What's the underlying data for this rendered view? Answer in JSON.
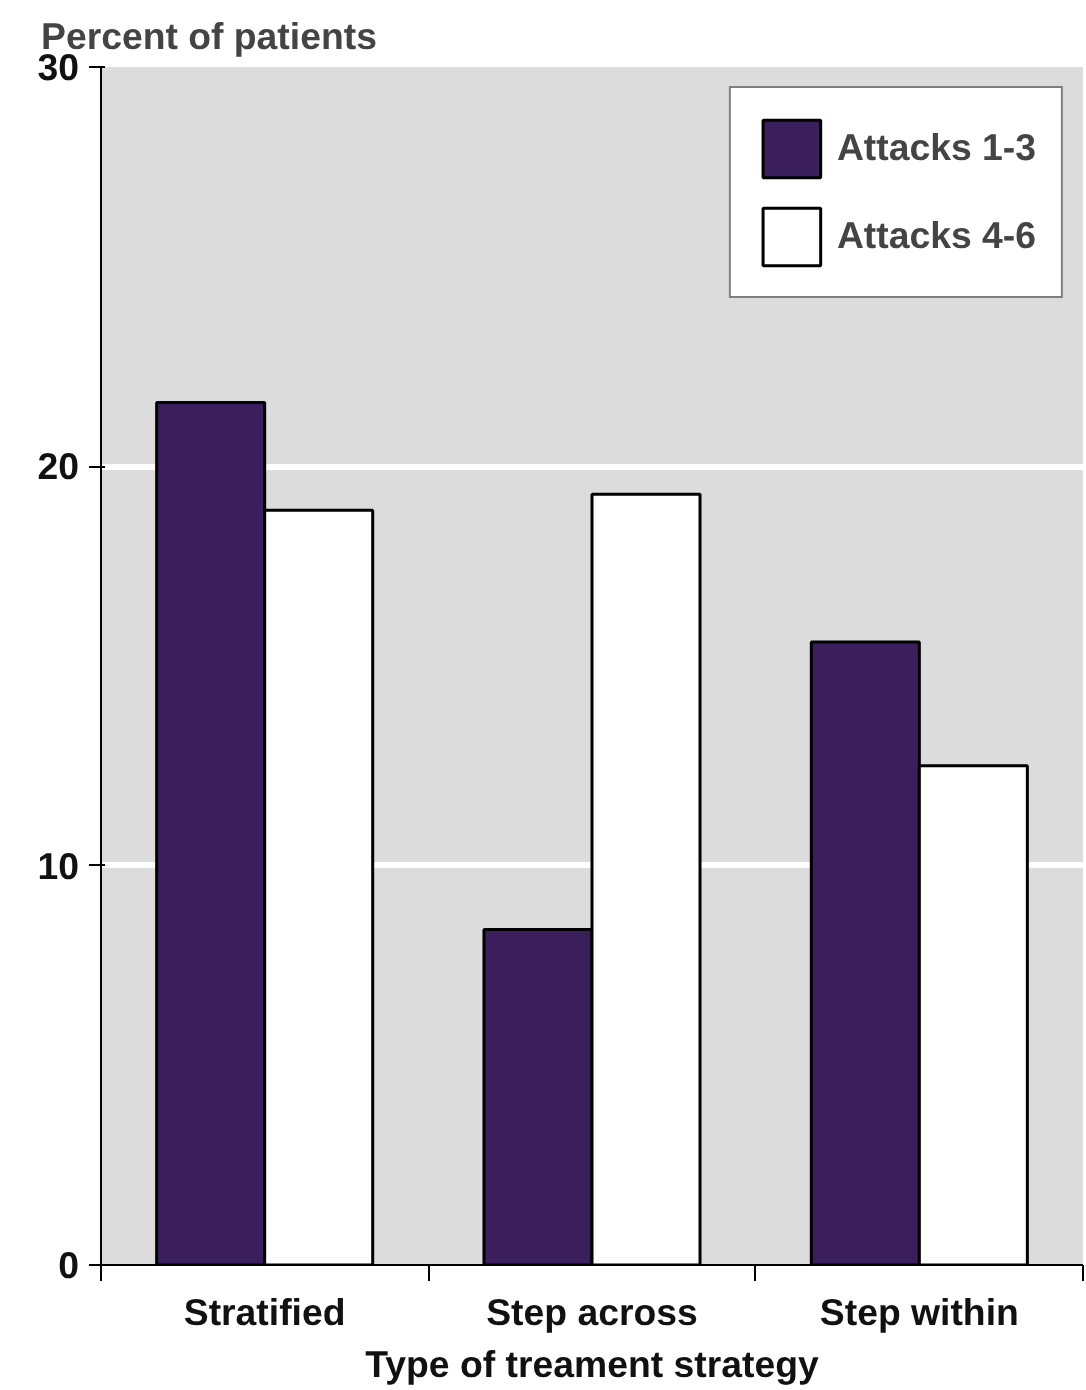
{
  "chart_data": {
    "type": "bar",
    "ylabel": "Percent of patients",
    "xlabel": "Type of treament strategy",
    "categories": [
      "Stratified",
      "Step across",
      "Step within"
    ],
    "series": [
      {
        "name": "Attacks 1-3",
        "color": "#3b1f5c",
        "values": [
          21.6,
          8.4,
          15.6
        ]
      },
      {
        "name": "Attacks 4-6",
        "color": "#ffffff",
        "values": [
          18.9,
          19.3,
          12.5
        ]
      }
    ],
    "ylim": [
      0,
      30
    ],
    "yticks": [
      0,
      10,
      20,
      30
    ],
    "grid": "y",
    "legend": "top right"
  }
}
